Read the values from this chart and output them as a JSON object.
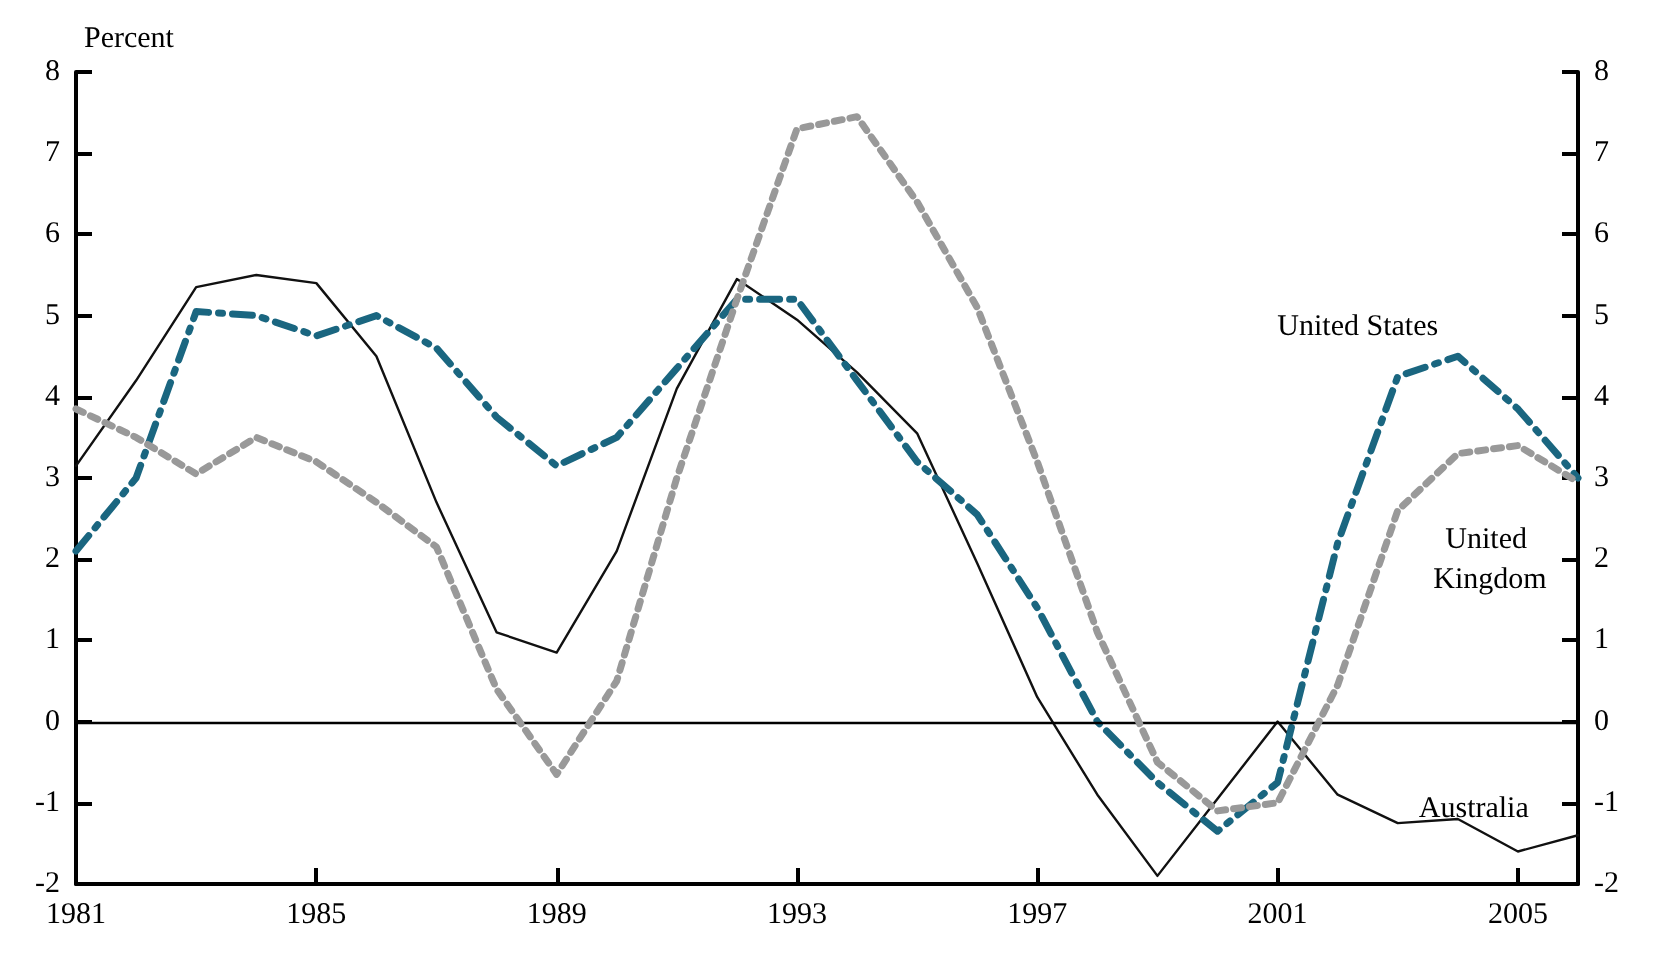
{
  "chart_data": {
    "type": "line",
    "ylabel": "Percent",
    "x": [
      1981,
      1982,
      1983,
      1984,
      1985,
      1986,
      1987,
      1988,
      1989,
      1990,
      1991,
      1992,
      1993,
      1994,
      1995,
      1996,
      1997,
      1998,
      1999,
      2000,
      2001,
      2002,
      2003,
      2004,
      2005,
      2006
    ],
    "series": [
      {
        "name": "Australia",
        "color": "#111111",
        "line_style": "solid",
        "values": [
          3.15,
          4.2,
          5.35,
          5.5,
          5.4,
          4.5,
          2.7,
          1.1,
          0.85,
          2.1,
          4.1,
          5.45,
          4.95,
          4.3,
          3.55,
          1.95,
          0.3,
          -0.9,
          -1.9,
          -0.95,
          0.0,
          -0.9,
          -1.25,
          -1.2,
          -1.6,
          -1.4
        ]
      },
      {
        "name": "United States",
        "color": "#1a6680",
        "line_style": "dashed",
        "values": [
          2.1,
          3.0,
          5.05,
          5.0,
          4.75,
          5.0,
          4.6,
          3.75,
          3.15,
          3.5,
          4.35,
          5.2,
          5.2,
          4.2,
          3.2,
          2.55,
          1.4,
          0.0,
          -0.75,
          -1.35,
          -0.75,
          2.2,
          4.25,
          4.5,
          3.85,
          3.0
        ]
      },
      {
        "name": "United Kingdom",
        "color": "#999999",
        "line_style": "dotted",
        "values": [
          3.85,
          3.5,
          3.05,
          3.5,
          3.2,
          2.7,
          2.15,
          0.4,
          -0.65,
          0.5,
          3.0,
          5.2,
          7.3,
          7.45,
          6.4,
          5.1,
          3.2,
          1.1,
          -0.5,
          -1.1,
          -1.0,
          0.45,
          2.6,
          3.3,
          3.4,
          2.95
        ]
      }
    ],
    "xlim": [
      1981,
      2006
    ],
    "xticks": [
      1981,
      1985,
      1989,
      1993,
      1997,
      2001,
      2005
    ],
    "ylim": [
      -2,
      8
    ],
    "yticks": [
      -2,
      -1,
      0,
      1,
      2,
      3,
      4,
      5,
      6,
      7,
      8
    ],
    "y2lim": [
      -2,
      8
    ],
    "y2ticks": [
      -2,
      -1,
      0,
      1,
      2,
      3,
      4,
      5,
      6,
      7,
      8
    ],
    "ref_lines": [
      {
        "axis": "y",
        "value": 0,
        "color": "#000000"
      }
    ],
    "grid": false,
    "legend": false
  }
}
